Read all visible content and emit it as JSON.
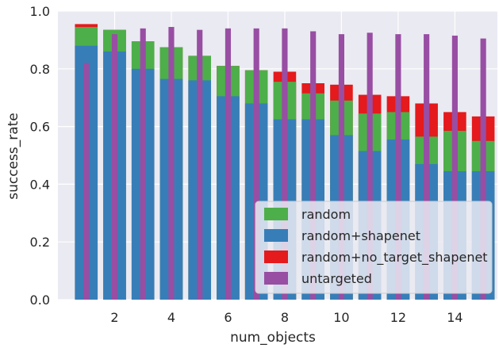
{
  "chart_data": {
    "type": "bar",
    "xlabel": "num_objects",
    "ylabel": "success_rate",
    "x": [
      1,
      2,
      3,
      4,
      5,
      6,
      7,
      8,
      9,
      10,
      11,
      12,
      13,
      14,
      15
    ],
    "xticks": [
      "2",
      "4",
      "6",
      "8",
      "10",
      "12",
      "14"
    ],
    "xtick_values": [
      2,
      4,
      6,
      8,
      10,
      12,
      14
    ],
    "xlim": [
      0,
      15.5
    ],
    "ylim": [
      0,
      1.0
    ],
    "yticks": [
      "0.0",
      "0.2",
      "0.4",
      "0.6",
      "0.8",
      "1.0"
    ],
    "ytick_values": [
      0.0,
      0.2,
      0.4,
      0.6,
      0.8,
      1.0
    ],
    "grid": true,
    "legend_position": "lower-right",
    "series": [
      {
        "name": "random+no_target_shapenet",
        "color": "#e41a1c",
        "values": [
          0.955,
          0.935,
          0.895,
          0.875,
          0.845,
          0.81,
          0.795,
          0.79,
          0.75,
          0.745,
          0.71,
          0.705,
          0.68,
          0.65,
          0.635
        ]
      },
      {
        "name": "random",
        "color": "#4daf4a",
        "values": [
          0.945,
          0.935,
          0.895,
          0.875,
          0.845,
          0.81,
          0.795,
          0.755,
          0.715,
          0.69,
          0.645,
          0.65,
          0.565,
          0.585,
          0.55
        ]
      },
      {
        "name": "random+shapenet",
        "color": "#377eb8",
        "values": [
          0.88,
          0.86,
          0.8,
          0.765,
          0.76,
          0.705,
          0.68,
          0.625,
          0.625,
          0.57,
          0.515,
          0.555,
          0.47,
          0.445,
          0.445
        ]
      },
      {
        "name": "untargeted",
        "color": "#984ea3",
        "values": [
          0.82,
          0.92,
          0.94,
          0.945,
          0.935,
          0.94,
          0.94,
          0.94,
          0.93,
          0.92,
          0.925,
          0.92,
          0.92,
          0.915,
          0.905
        ]
      }
    ],
    "legend_order": [
      "random",
      "random+shapenet",
      "random+no_target_shapenet",
      "untargeted"
    ]
  },
  "colors": {
    "plot_background": "#eaeaf2",
    "grid": "#ffffff"
  }
}
